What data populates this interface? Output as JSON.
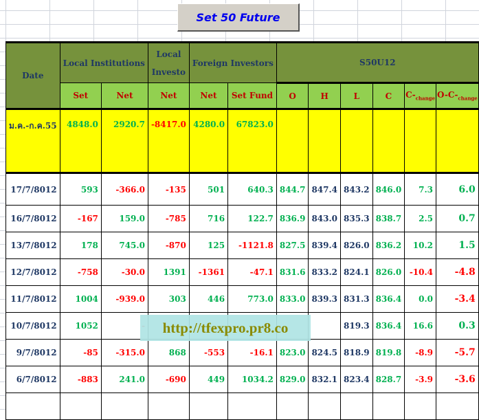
{
  "title": "Set 50  Future",
  "headers": {
    "date": "Date",
    "local_institutions": "Local Institutions",
    "local_investors": "Local Investo",
    "foreign_investors": "Foreign Investors",
    "contract": "S50U12",
    "sub": [
      "Set",
      "Net",
      "Net",
      "Net",
      "Set Fund",
      "O",
      "H",
      "L",
      "C"
    ],
    "c_change": "C-",
    "o_c_change": "O-C-",
    "change_sub": "change"
  },
  "summary": {
    "label": "ม.ค.-ก.ค.55",
    "values": [
      "4848.0",
      "2920.7",
      "-8417.0",
      "4280.0",
      "67823.0",
      "",
      "",
      "",
      "",
      "",
      ""
    ]
  },
  "rows": [
    {
      "date": "17/7/8012",
      "values": [
        "593",
        "-366.0",
        "-135",
        "501",
        "640.3",
        "844.7",
        "847.4",
        "843.2",
        "846.0",
        "7.3",
        "6.0"
      ]
    },
    {
      "date": "16/7/8012",
      "values": [
        "-167",
        "159.0",
        "-785",
        "716",
        "122.7",
        "836.9",
        "843.0",
        "835.3",
        "838.7",
        "2.5",
        "0.7"
      ]
    },
    {
      "date": "13/7/8012",
      "values": [
        "178",
        "745.0",
        "-870",
        "125",
        "-1121.8",
        "827.5",
        "839.4",
        "826.0",
        "836.2",
        "10.2",
        "1.5"
      ]
    },
    {
      "date": "12/7/8012",
      "values": [
        "-758",
        "-30.0",
        "1391",
        "-1361",
        "-47.1",
        "831.6",
        "833.2",
        "824.1",
        "826.0",
        "-10.4",
        "-4.8"
      ]
    },
    {
      "date": "11/7/8012",
      "values": [
        "1004",
        "-939.0",
        "303",
        "446",
        "773.0",
        "833.0",
        "839.3",
        "831.3",
        "836.4",
        "0.0",
        "-3.4"
      ]
    },
    {
      "date": "10/7/8012",
      "values": [
        "1052",
        "-",
        "",
        "",
        "",
        "",
        "",
        "819.3",
        "836.4",
        "16.6",
        "0.3"
      ]
    },
    {
      "date": "9/7/8012",
      "values": [
        "-85",
        "-315.0",
        "868",
        "-553",
        "-16.1",
        "823.0",
        "824.5",
        "818.9",
        "819.8",
        "-8.9",
        "-5.7"
      ]
    },
    {
      "date": "6/7/8012",
      "values": [
        "-883",
        "241.0",
        "-690",
        "449",
        "1034.2",
        "829.0",
        "832.1",
        "823.4",
        "828.7",
        "-3.9",
        "-3.6"
      ]
    },
    {
      "date": "",
      "values": [
        "",
        "",
        "",
        "",
        "",
        "",
        "",
        "",
        "",
        "",
        ""
      ]
    }
  ],
  "watermark": "http://tfexpro.pr8.co",
  "colors": {
    "header": "#76923c",
    "subheader": "#92d050",
    "summary": "#ffff00",
    "positive": "#00b050",
    "negative": "#ff0000",
    "neutral": "#1f3864"
  }
}
